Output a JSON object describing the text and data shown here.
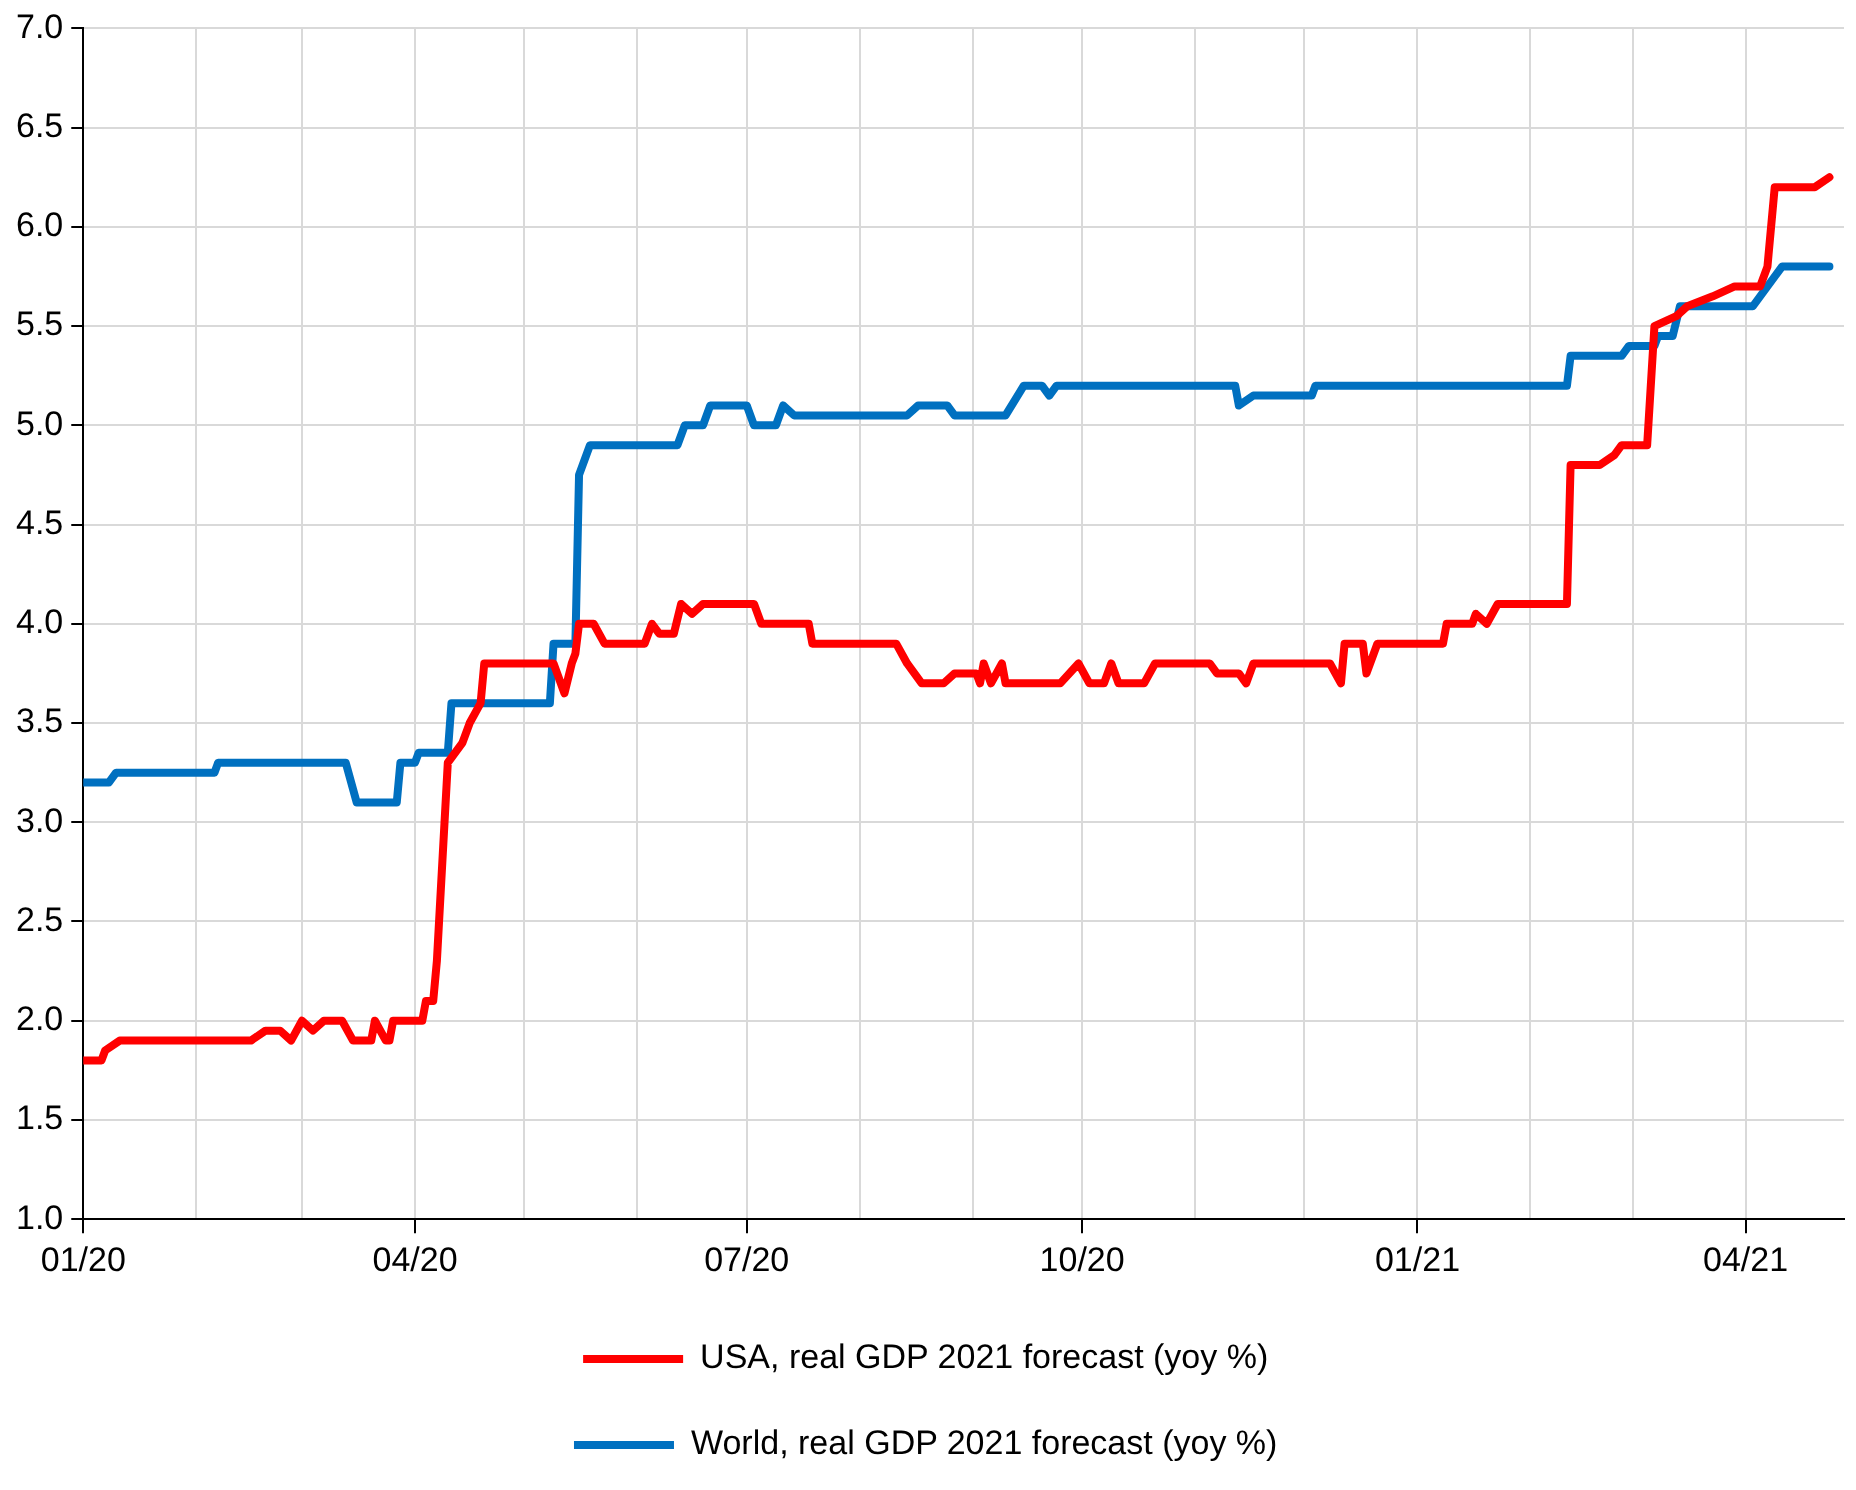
{
  "chart_data": {
    "type": "line",
    "xlim": [
      "2020-01-01",
      "2021-04-28"
    ],
    "xticks": [
      {
        "value": "2020-01",
        "label": "01/20"
      },
      {
        "value": "2020-02",
        "label": null
      },
      {
        "value": "2020-03",
        "label": null
      },
      {
        "value": "2020-04",
        "label": "04/20"
      },
      {
        "value": "2020-05",
        "label": null
      },
      {
        "value": "2020-06",
        "label": null
      },
      {
        "value": "2020-07",
        "label": "07/20"
      },
      {
        "value": "2020-08",
        "label": null
      },
      {
        "value": "2020-09",
        "label": null
      },
      {
        "value": "2020-10",
        "label": "10/20"
      },
      {
        "value": "2020-11",
        "label": null
      },
      {
        "value": "2020-12",
        "label": null
      },
      {
        "value": "2021-01",
        "label": "01/21"
      },
      {
        "value": "2021-02",
        "label": null
      },
      {
        "value": "2021-03",
        "label": null
      },
      {
        "value": "2021-04",
        "label": "04/21"
      }
    ],
    "ylim": [
      1,
      7
    ],
    "yticks": [
      {
        "value": 1,
        "label": "1.0"
      },
      {
        "value": 1.5,
        "label": "1.5"
      },
      {
        "value": 2,
        "label": "2.0"
      },
      {
        "value": 2.5,
        "label": "2.5"
      },
      {
        "value": 3,
        "label": "3.0"
      },
      {
        "value": 3.5,
        "label": "3.5"
      },
      {
        "value": 4,
        "label": "4.0"
      },
      {
        "value": 4.5,
        "label": "4.5"
      },
      {
        "value": 5,
        "label": "5.0"
      },
      {
        "value": 5.5,
        "label": "5.5"
      },
      {
        "value": 6,
        "label": "6.0"
      },
      {
        "value": 6.5,
        "label": "6.5"
      },
      {
        "value": 7,
        "label": "7.0"
      }
    ],
    "grid": true,
    "legend": "bottom",
    "marker": "none",
    "series": [
      {
        "name": "USA, real GDP 2021 forecast (yoy %)",
        "color": "#ff0000",
        "x": [
          "2020-01-01",
          "2020-01-06",
          "2020-01-07",
          "2020-01-11",
          "2020-02-16",
          "2020-02-20",
          "2020-02-24",
          "2020-02-27",
          "2020-03-01",
          "2020-03-04",
          "2020-03-07",
          "2020-03-12",
          "2020-03-15",
          "2020-03-20",
          "2020-03-21",
          "2020-03-24",
          "2020-03-25",
          "2020-03-26",
          "2020-04-03",
          "2020-04-04",
          "2020-04-06",
          "2020-04-07",
          "2020-04-10",
          "2020-04-14",
          "2020-04-16",
          "2020-04-19",
          "2020-04-20",
          "2020-05-09",
          "2020-05-12",
          "2020-05-14",
          "2020-05-15",
          "2020-05-16",
          "2020-05-20",
          "2020-05-23",
          "2020-06-03",
          "2020-06-05",
          "2020-06-07",
          "2020-06-11",
          "2020-06-13",
          "2020-06-16",
          "2020-06-19",
          "2020-07-03",
          "2020-07-05",
          "2020-07-18",
          "2020-07-19",
          "2020-08-11",
          "2020-08-14",
          "2020-08-18",
          "2020-08-24",
          "2020-08-27",
          "2020-09-02",
          "2020-09-03",
          "2020-09-04",
          "2020-09-06",
          "2020-09-09",
          "2020-09-10",
          "2020-09-25",
          "2020-09-30",
          "2020-10-03",
          "2020-10-07",
          "2020-10-09",
          "2020-10-11",
          "2020-10-18",
          "2020-10-21",
          "2020-11-05",
          "2020-11-07",
          "2020-11-13",
          "2020-11-15",
          "2020-11-17",
          "2020-12-08",
          "2020-12-11",
          "2020-12-12",
          "2020-12-17",
          "2020-12-18",
          "2020-12-20",
          "2020-12-21",
          "2021-01-08",
          "2021-01-09",
          "2021-01-16",
          "2021-01-17",
          "2021-01-20",
          "2021-01-23",
          "2021-02-11",
          "2021-02-12",
          "2021-02-20",
          "2021-02-24",
          "2021-02-26",
          "2021-03-05",
          "2021-03-07",
          "2021-03-13",
          "2021-03-16",
          "2021-03-23",
          "2021-03-29",
          "2021-04-05",
          "2021-04-07",
          "2021-04-09",
          "2021-04-20",
          "2021-04-24"
        ],
        "values": [
          1.8,
          1.8,
          1.85,
          1.9,
          1.9,
          1.95,
          1.95,
          1.9,
          2.0,
          1.95,
          2.0,
          2.0,
          1.9,
          1.9,
          2.0,
          1.9,
          1.9,
          2.0,
          2.0,
          2.1,
          2.1,
          2.3,
          3.3,
          3.4,
          3.5,
          3.6,
          3.8,
          3.8,
          3.65,
          3.8,
          3.85,
          4.0,
          4.0,
          3.9,
          3.9,
          4.0,
          3.95,
          3.95,
          4.1,
          4.05,
          4.1,
          4.1,
          4.0,
          4.0,
          3.9,
          3.9,
          3.8,
          3.7,
          3.7,
          3.75,
          3.75,
          3.7,
          3.8,
          3.7,
          3.8,
          3.7,
          3.7,
          3.8,
          3.7,
          3.7,
          3.8,
          3.7,
          3.7,
          3.8,
          3.8,
          3.75,
          3.75,
          3.7,
          3.8,
          3.8,
          3.7,
          3.9,
          3.9,
          3.75,
          3.85,
          3.9,
          3.9,
          4.0,
          4.0,
          4.05,
          4.0,
          4.1,
          4.1,
          4.8,
          4.8,
          4.85,
          4.9,
          4.9,
          5.5,
          5.55,
          5.6,
          5.65,
          5.7,
          5.7,
          5.8,
          6.2,
          6.2,
          6.25
        ]
      },
      {
        "name": "World, real GDP 2021 forecast (yoy %)",
        "color": "#0070c0",
        "x": [
          "2020-01-01",
          "2020-01-08",
          "2020-01-10",
          "2020-02-06",
          "2020-02-07",
          "2020-03-13",
          "2020-03-16",
          "2020-03-27",
          "2020-03-28",
          "2020-04-01",
          "2020-04-02",
          "2020-04-10",
          "2020-04-11",
          "2020-05-08",
          "2020-05-09",
          "2020-05-15",
          "2020-05-16",
          "2020-05-19",
          "2020-06-12",
          "2020-06-14",
          "2020-06-19",
          "2020-06-21",
          "2020-07-01",
          "2020-07-03",
          "2020-07-09",
          "2020-07-11",
          "2020-07-14",
          "2020-08-14",
          "2020-08-17",
          "2020-08-25",
          "2020-08-27",
          "2020-09-10",
          "2020-09-15",
          "2020-09-20",
          "2020-09-22",
          "2020-09-24",
          "2020-11-12",
          "2020-11-13",
          "2020-11-17",
          "2020-12-03",
          "2020-12-04",
          "2021-02-11",
          "2021-02-12",
          "2021-02-26",
          "2021-02-28",
          "2021-03-07",
          "2021-03-08",
          "2021-03-12",
          "2021-03-14",
          "2021-04-03",
          "2021-04-11",
          "2021-04-24"
        ],
        "values": [
          3.2,
          3.2,
          3.25,
          3.25,
          3.3,
          3.3,
          3.1,
          3.1,
          3.3,
          3.3,
          3.35,
          3.35,
          3.6,
          3.6,
          3.9,
          3.9,
          4.75,
          4.9,
          4.9,
          5.0,
          5.0,
          5.1,
          5.1,
          5.0,
          5.0,
          5.1,
          5.05,
          5.05,
          5.1,
          5.1,
          5.05,
          5.05,
          5.2,
          5.2,
          5.15,
          5.2,
          5.2,
          5.1,
          5.15,
          5.15,
          5.2,
          5.2,
          5.35,
          5.35,
          5.4,
          5.4,
          5.45,
          5.45,
          5.6,
          5.6,
          5.8,
          5.8
        ]
      }
    ]
  }
}
